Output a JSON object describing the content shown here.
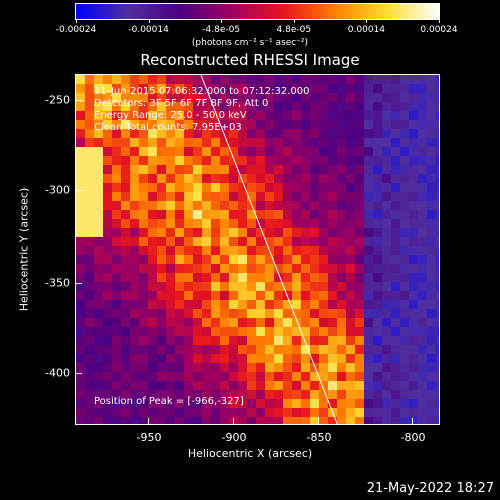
{
  "colorbar": {
    "tick_labels": [
      "-0.00024",
      "-0.00014",
      "-4.8e-05",
      "4.8e-05",
      "0.00014",
      "0.00024"
    ],
    "units": "(photons cm⁻² s⁻¹ asec⁻²)",
    "colors": [
      "#0000ff",
      "#4f2f9f",
      "#4b0082",
      "#a0005f",
      "#e8141e",
      "#ff7f00",
      "#ffdd33",
      "#ffffff"
    ]
  },
  "title": "Reconstructed RHESSI Image",
  "info": {
    "time_range": "11-Jun-2015 07:06:32.000 to 07:12:32.000",
    "detectors": "Detectors: 3F 5F 6F 7F 8F 9F, Att 0",
    "energy": "Energy Range: 25.0 - 50.0 keV",
    "clean": "Clean     Total counts: 7.95E+03",
    "peak": "Position of Peak = [-966,-327]"
  },
  "axes": {
    "xlabel": "Heliocentric X (arcsec)",
    "ylabel": "Heliocentric Y (arcsec)",
    "x_ticks": [
      "-950",
      "-900",
      "-850",
      "-800"
    ],
    "y_ticks": [
      "-250",
      "-300",
      "-350",
      "-400"
    ],
    "xlim": [
      -985,
      -790
    ],
    "ylim": [
      -427,
      -234
    ]
  },
  "timestamp": "21-May-2022 18:27"
}
